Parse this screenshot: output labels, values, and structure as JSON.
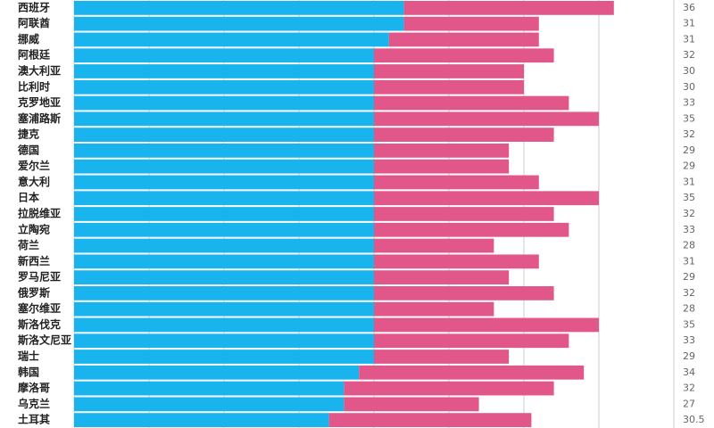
{
  "chart_data": {
    "type": "stacked-bar-horizontal",
    "categories": [
      "西班牙",
      "阿联酋",
      "挪威",
      "阿根廷",
      "澳大利亚",
      "比利时",
      "克罗地亚",
      "塞浦路斯",
      "捷克",
      "德国",
      "爱尔兰",
      "意大利",
      "日本",
      "拉脱维亚",
      "立陶宛",
      "荷兰",
      "新西兰",
      "罗马尼亚",
      "俄罗斯",
      "塞尔维亚",
      "斯洛伐克",
      "斯洛文尼亚",
      "瑞士",
      "韩国",
      "摩洛哥",
      "乌克兰",
      "土耳其"
    ],
    "series": [
      {
        "color": "#19b4ee",
        "values": [
          22,
          22,
          21,
          20,
          20,
          20,
          20,
          20,
          20,
          20,
          20,
          20,
          20,
          20,
          20,
          20,
          20,
          20,
          20,
          20,
          20,
          20,
          20,
          19,
          18,
          18,
          17
        ]
      },
      {
        "color": "#e2578a",
        "values": [
          14,
          9,
          10,
          12,
          10,
          10,
          13,
          15,
          12,
          9,
          9,
          11,
          15,
          12,
          13,
          8,
          11,
          9,
          12,
          8,
          15,
          13,
          9,
          15,
          14,
          9,
          13.5
        ]
      }
    ],
    "totals": [
      36,
      31,
      31,
      32,
      30,
      30,
      33,
      35,
      32,
      29,
      29,
      31,
      35,
      32,
      33,
      28,
      31,
      29,
      32,
      28,
      35,
      33,
      29,
      34,
      32,
      27,
      30.5
    ],
    "xlim": [
      0,
      40
    ],
    "xticks": [
      0,
      5,
      10,
      15,
      20,
      25,
      30,
      35,
      40
    ],
    "grid": true
  }
}
